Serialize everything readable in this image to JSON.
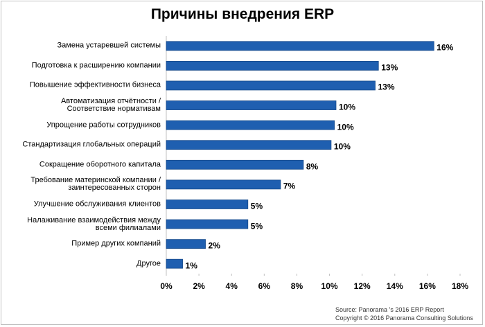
{
  "chart_data": {
    "type": "hbar",
    "title": "Причины внедрения ERP",
    "categories": [
      "Замена устаревшей системы",
      "Подготовка к расширению компании",
      "Повышение эффективности бизнеса",
      "Автоматизация отчётности /\nСоответствие нормативам",
      "Упрощение работы сотрудников",
      "Стандартизация глобальных операций",
      "Сокращение оборотного капитала",
      "Требование материнской компании /\nзаинтересованных сторон",
      "Улучшение обслуживания клиентов",
      "Налаживание взаимодействия между\nвсеми филиалами",
      "Пример других компаний",
      "Другое"
    ],
    "values": [
      16.4,
      13.0,
      12.8,
      10.4,
      10.3,
      10.1,
      8.4,
      7.0,
      5.0,
      5.0,
      2.4,
      1.0
    ],
    "value_labels": [
      "16%",
      "13%",
      "13%",
      "10%",
      "10%",
      "10%",
      "8%",
      "7%",
      "5%",
      "5%",
      "2%",
      "1%"
    ],
    "color": "#1f5fb0",
    "xlim": [
      0,
      18
    ],
    "xticks": [
      {
        "value": 0,
        "label": "0%"
      },
      {
        "value": 2,
        "label": "2%"
      },
      {
        "value": 4,
        "label": "4%"
      },
      {
        "value": 6,
        "label": "6%"
      },
      {
        "value": 8,
        "label": "8%"
      },
      {
        "value": 10,
        "label": "10%"
      },
      {
        "value": 12,
        "label": "12%"
      },
      {
        "value": 14,
        "label": "14%"
      },
      {
        "value": 16,
        "label": "16%"
      },
      {
        "value": 18,
        "label": "18%"
      }
    ],
    "source": [
      "Source: Panorama ’s 2016 ERP Report",
      "Copyright © 2016 Panorama Consulting Solutions"
    ]
  }
}
